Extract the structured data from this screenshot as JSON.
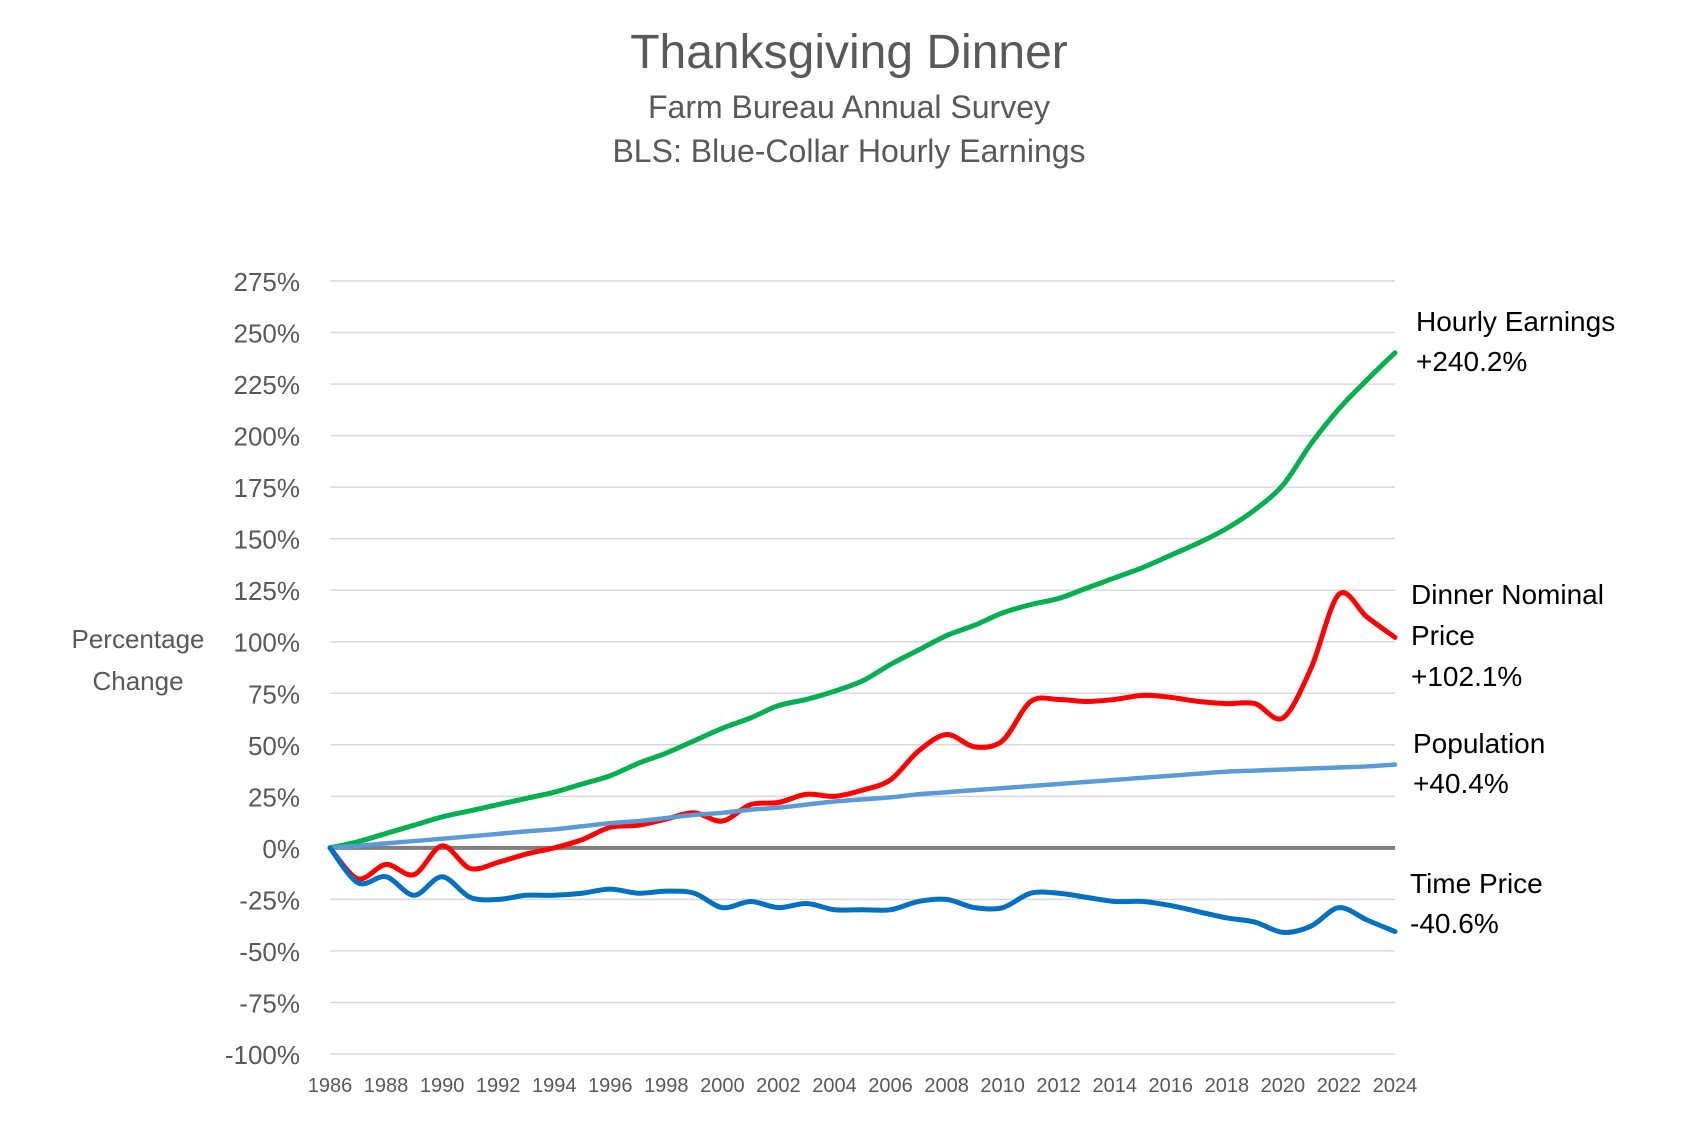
{
  "chart_data": {
    "type": "line",
    "title": "Thanksgiving Dinner",
    "subtitle_lines": [
      "Farm Bureau Annual Survey",
      "BLS: Blue-Collar Hourly Earnings"
    ],
    "ylabel_lines": [
      "Percentage",
      "Change"
    ],
    "xlabel": "",
    "ylim": [
      -100,
      275
    ],
    "y_ticks": [
      275,
      250,
      225,
      200,
      175,
      150,
      125,
      100,
      75,
      50,
      25,
      0,
      -25,
      -50,
      -75,
      -100
    ],
    "y_tick_labels": [
      "275%",
      "250%",
      "225%",
      "200%",
      "175%",
      "150%",
      "125%",
      "100%",
      "75%",
      "50%",
      "25%",
      "0%",
      "-25%",
      "-50%",
      "-75%",
      "-100%"
    ],
    "x_ticks": [
      "1986",
      "1988",
      "1990",
      "1992",
      "1994",
      "1996",
      "1998",
      "2000",
      "2002",
      "2004",
      "2006",
      "2008",
      "2010",
      "2012",
      "2014",
      "2016",
      "2018",
      "2020",
      "2022",
      "2024"
    ],
    "x": [
      1986,
      1987,
      1988,
      1989,
      1990,
      1991,
      1992,
      1993,
      1994,
      1995,
      1996,
      1997,
      1998,
      1999,
      2000,
      2001,
      2002,
      2003,
      2004,
      2005,
      2006,
      2007,
      2008,
      2009,
      2010,
      2011,
      2012,
      2013,
      2014,
      2015,
      2016,
      2017,
      2018,
      2019,
      2020,
      2021,
      2022,
      2023,
      2024
    ],
    "grid": true,
    "zero_line": true,
    "legend": "none",
    "series": [
      {
        "color": "#00b050",
        "end_label_lines": [
          "Hourly Earnings",
          "+240.2%"
        ],
        "values": [
          0,
          3,
          7,
          11,
          15,
          18,
          21,
          24,
          27,
          31,
          35,
          41,
          46,
          52,
          58,
          63,
          69,
          72,
          76,
          81,
          89,
          96,
          103,
          108,
          114,
          118,
          121,
          126,
          131,
          136,
          142,
          148,
          155,
          164,
          176,
          196,
          213,
          227,
          240.2
        ]
      },
      {
        "color": "#ff0000",
        "end_label_lines": [
          "Dinner Nominal",
          "Price",
          "+102.1%"
        ],
        "values": [
          0,
          -15,
          -8,
          -13,
          1,
          -10,
          -7,
          -3,
          0,
          4,
          10,
          11,
          14,
          17,
          13,
          21,
          22,
          26,
          25,
          28,
          33,
          47,
          55,
          49,
          52,
          71,
          72,
          71,
          72,
          74,
          73,
          71,
          70,
          70,
          63,
          87,
          123,
          112,
          102.1
        ]
      },
      {
        "color": "#5b9bd5",
        "end_label_lines": [
          "Population",
          "+40.4%"
        ],
        "values": [
          0,
          1,
          2.2,
          3.3,
          4.4,
          5.6,
          6.8,
          8,
          9,
          10.5,
          12,
          13,
          14.5,
          16,
          17,
          18.5,
          19.5,
          21,
          22.5,
          23.5,
          24.5,
          26,
          27,
          28,
          29,
          30,
          31,
          32,
          33,
          34,
          35,
          36,
          37,
          37.5,
          38,
          38.5,
          39,
          39.5,
          40.4
        ]
      },
      {
        "color": "#0070c0",
        "end_label_lines": [
          "Time Price",
          "-40.6%"
        ],
        "values": [
          0,
          -17,
          -14,
          -23,
          -14,
          -24,
          -25,
          -23,
          -23,
          -22,
          -20,
          -22,
          -21,
          -22,
          -29,
          -26,
          -29,
          -27,
          -30,
          -30,
          -30,
          -26,
          -25,
          -29,
          -29,
          -22,
          -22,
          -24,
          -26,
          -26,
          -28,
          -31,
          -34,
          -36,
          -41,
          -38,
          -29,
          -35,
          -40.6
        ]
      }
    ]
  }
}
